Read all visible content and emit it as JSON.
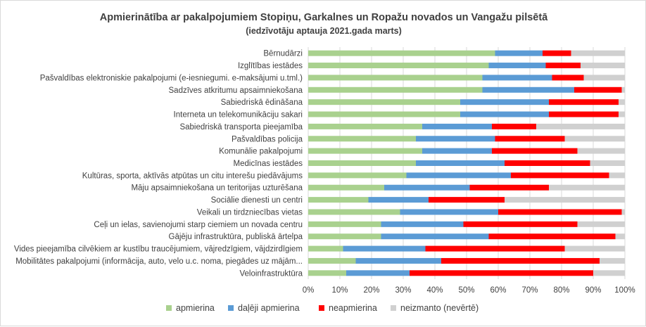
{
  "chart_data": {
    "type": "bar",
    "orientation": "horizontal",
    "stacked": "percent",
    "title": "Apmierinātība ar pakalpojumiem  Stopiņu, Garkalnes un Ropažu novados un Vangažu pilsētā",
    "subtitle": "(iedzīvotāju aptauja 2021.gada marts)",
    "xlabel": "",
    "ylabel": "",
    "xlim": [
      0,
      100
    ],
    "x_ticks": [
      "0%",
      "10%",
      "20%",
      "30%",
      "40%",
      "50%",
      "60%",
      "70%",
      "80%",
      "90%",
      "100%"
    ],
    "grid": true,
    "legend_position": "bottom",
    "categories": [
      "Bērnudārzi",
      "Izglītības iestādes",
      "Pašvaldības elektroniskie pakalpojumi (e-iesniegumi. e-maksājumi u.tml.)",
      "Sadzīves atkritumu apsaimniekošana",
      "Sabiedriskā ēdināšana",
      "Interneta un telekomunikāciju sakari",
      "Sabiedriskā transporta pieejamība",
      "Pašvaldības policija",
      "Komunālie pakalpojumi",
      "Medicīnas iestādes",
      "Kultūras, sporta, aktīvās atpūtas un citu interešu piedāvājums",
      "Māju apsaimniekošana un teritorijas uzturēšana",
      "Sociālie dienesti un centri",
      "Veikali un tirdzniecības vietas",
      "Ceļi un ielas, savienojumi starp ciemiem un novada centru",
      "Gājēju infrastruktūra, publiskā ārtelpa",
      "Vides pieejamība cilvēkiem ar kustību traucējumiem, vājredzīgiem, vājdzirdīgiem",
      "Mobilitātes pakalpojumi (informācija, auto, velo u.c. noma, piegādes uz mājām...",
      "Veloinfrastruktūra"
    ],
    "series": [
      {
        "name": "apmierina",
        "color": "#a9d18e",
        "values": [
          59,
          57,
          55,
          55,
          48,
          48,
          36,
          34,
          36,
          34,
          31,
          24,
          19,
          29,
          23,
          23,
          11,
          15,
          12
        ]
      },
      {
        "name": "daļēji apmierina",
        "color": "#5b9bd5",
        "values": [
          15,
          18,
          22,
          29,
          28,
          28,
          22,
          25,
          22,
          28,
          33,
          27,
          19,
          31,
          26,
          34,
          26,
          27,
          20
        ]
      },
      {
        "name": "neapmierina",
        "color": "#ff0000",
        "values": [
          9,
          11,
          10,
          15,
          22,
          22,
          14,
          22,
          27,
          27,
          31,
          25,
          24,
          39,
          36,
          40,
          44,
          50,
          58
        ]
      },
      {
        "name": "neizmanto (nevērtē)",
        "color": "#d0d0d0",
        "values": [
          17,
          14,
          13,
          1,
          2,
          2,
          28,
          19,
          15,
          11,
          5,
          24,
          38,
          1,
          15,
          3,
          19,
          8,
          10
        ]
      }
    ]
  }
}
